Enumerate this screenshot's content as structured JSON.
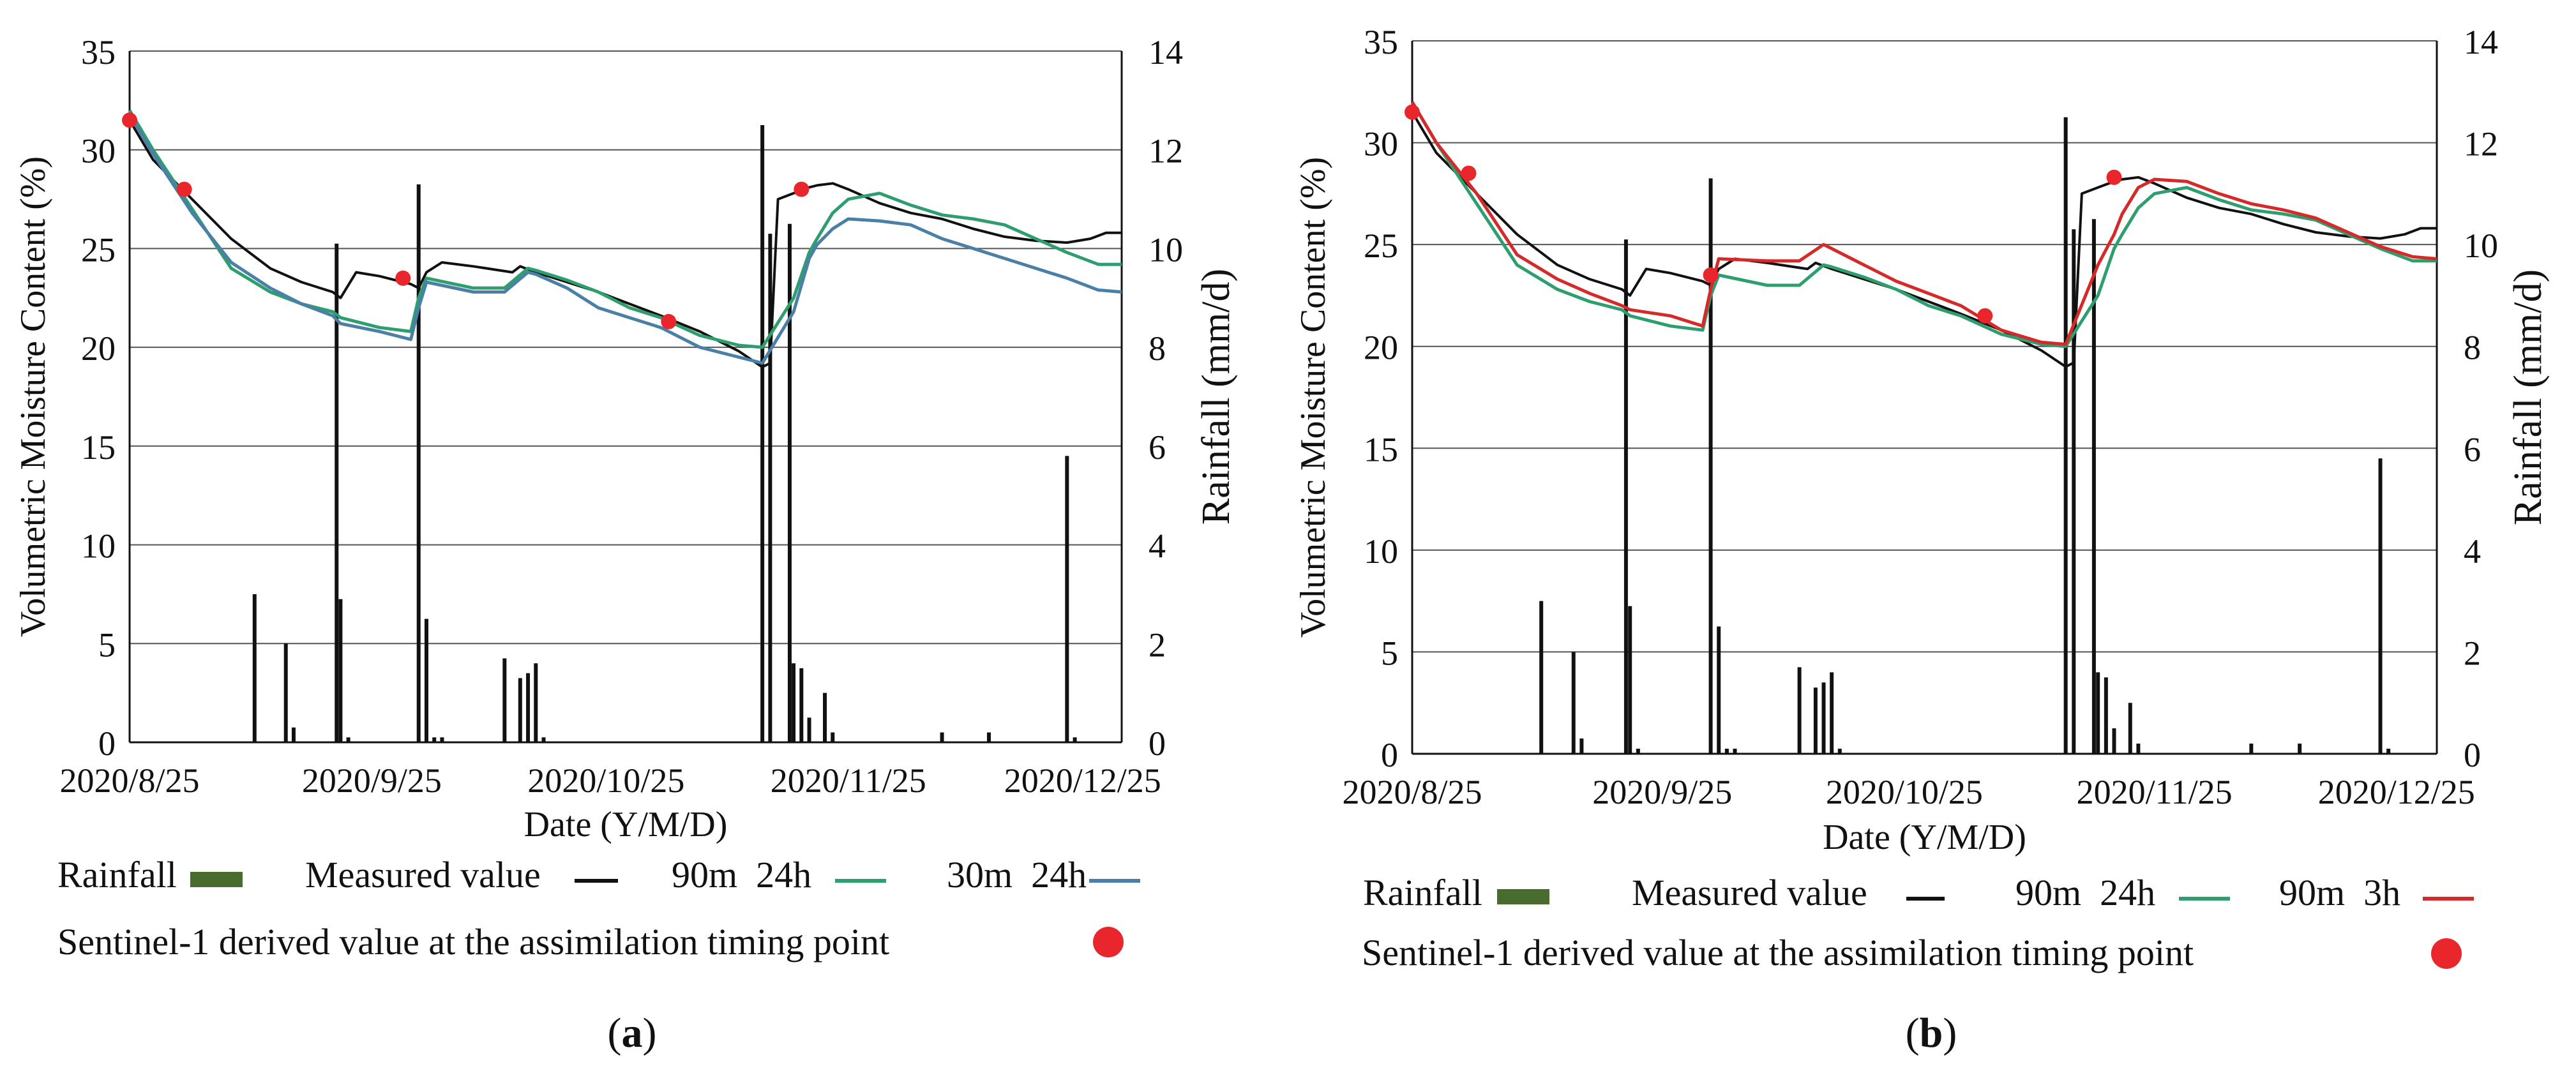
{
  "figure": {
    "panels": [
      {
        "panel_label": "a",
        "legend": {
          "rainfall": "Rainfall",
          "measured": "Measured value",
          "series_a": "90m  24h",
          "series_b": "30m  24h",
          "sentinel": "Sentinel-1 derived value at the assimilation timing point"
        }
      },
      {
        "panel_label": "b",
        "legend": {
          "rainfall": "Rainfall",
          "measured": "Measured value",
          "series_a": "90m  24h",
          "series_b": "90m  3h",
          "sentinel": "Sentinel-1 derived value at the assimilation timing point"
        }
      }
    ]
  },
  "colors": {
    "measured": "#111111",
    "green": "#2e9e6e",
    "blue": "#4a7fa8",
    "red": "#d62a2a",
    "rainfall_legend": "#4a6b2e",
    "bars": "#111111",
    "grid": "#555555",
    "dot": "#e8262b"
  },
  "chart_data": [
    {
      "type": "line",
      "title": "",
      "panel": "a",
      "xlabel": "Date (Y/M/D)",
      "ylabel": "Volumetric Moisture Content (%)",
      "y2label": "Rainfall (mm/d)",
      "x_ticks": [
        "2020/8/25",
        "2020/9/25",
        "2020/10/25",
        "2020/11/25",
        "2020/12/25"
      ],
      "x_tick_days": [
        0,
        31,
        61,
        92,
        122
      ],
      "xlim": [
        0,
        127
      ],
      "ylim": [
        0,
        35
      ],
      "y_ticks": [
        0,
        5,
        10,
        15,
        20,
        25,
        30,
        35
      ],
      "y2lim": [
        0,
        14
      ],
      "y2_ticks": [
        0,
        2,
        4,
        6,
        8,
        10,
        12,
        14
      ],
      "series": [
        {
          "name": "Measured value",
          "color": "measured",
          "x": [
            0,
            3,
            8,
            13,
            18,
            22,
            26,
            27,
            29,
            32,
            36,
            37,
            38,
            40,
            44,
            49,
            50,
            52,
            56,
            60,
            64,
            68,
            73,
            78,
            81,
            82,
            83,
            85,
            87,
            88,
            90,
            92,
            96,
            100,
            104,
            108,
            112,
            116,
            120,
            123,
            125,
            127
          ],
          "y": [
            31.5,
            29.5,
            27.5,
            25.5,
            24.0,
            23.3,
            22.8,
            22.5,
            23.8,
            23.6,
            23.2,
            23.0,
            23.8,
            24.3,
            24.1,
            23.8,
            24.1,
            23.8,
            23.3,
            22.8,
            22.2,
            21.6,
            20.8,
            19.8,
            19.0,
            19.2,
            27.5,
            27.8,
            28.1,
            28.2,
            28.3,
            28.0,
            27.3,
            26.8,
            26.5,
            26.0,
            25.6,
            25.4,
            25.3,
            25.5,
            25.8,
            25.8
          ]
        },
        {
          "name": "90m  24h",
          "color": "green",
          "x": [
            0,
            3,
            8,
            13,
            18,
            22,
            26,
            27,
            32,
            36,
            37,
            38,
            44,
            48,
            51,
            52,
            56,
            60,
            64,
            68,
            73,
            78,
            81,
            85,
            87,
            88,
            90,
            92,
            96,
            100,
            104,
            108,
            112,
            116,
            120,
            124,
            127
          ],
          "y": [
            32.0,
            30.0,
            27.0,
            24.0,
            22.8,
            22.2,
            21.8,
            21.5,
            21.0,
            20.8,
            22.5,
            23.5,
            23.0,
            23.0,
            24.0,
            23.9,
            23.4,
            22.8,
            22.0,
            21.5,
            20.6,
            20.1,
            20.0,
            22.5,
            24.8,
            25.5,
            26.8,
            27.5,
            27.8,
            27.2,
            26.7,
            26.5,
            26.2,
            25.5,
            24.8,
            24.2,
            24.2
          ]
        },
        {
          "name": "30m  24h",
          "color": "blue",
          "x": [
            0,
            3,
            8,
            13,
            18,
            22,
            26,
            27,
            32,
            36,
            37,
            38,
            44,
            48,
            51,
            52,
            56,
            60,
            64,
            68,
            73,
            78,
            81,
            85,
            87,
            88,
            90,
            92,
            96,
            100,
            104,
            108,
            112,
            116,
            120,
            124,
            127
          ],
          "y": [
            31.8,
            29.8,
            26.8,
            24.3,
            23.0,
            22.2,
            21.6,
            21.2,
            20.8,
            20.4,
            22.0,
            23.3,
            22.8,
            22.8,
            23.8,
            23.7,
            23.0,
            22.0,
            21.5,
            21.0,
            20.0,
            19.5,
            19.2,
            21.8,
            24.5,
            25.2,
            26.0,
            26.5,
            26.4,
            26.2,
            25.5,
            25.0,
            24.5,
            24.0,
            23.5,
            22.9,
            22.8
          ]
        }
      ],
      "points": {
        "name": "Sentinel-1 derived value at the assimilation timing point",
        "color": "dot",
        "x": [
          0,
          7,
          35,
          69,
          86
        ],
        "y": [
          31.5,
          28.0,
          23.5,
          21.3,
          28.0
        ]
      },
      "bars": {
        "name": "Rainfall",
        "axis": "y2",
        "x": [
          16,
          20,
          21,
          26.5,
          27,
          28,
          37,
          38,
          39,
          40,
          48,
          50,
          51,
          52,
          53,
          81,
          82,
          84.5,
          85,
          86,
          87,
          89,
          90,
          104,
          110,
          120,
          121
        ],
        "values": [
          3.0,
          2.0,
          0.3,
          10.1,
          2.9,
          0.1,
          11.3,
          2.5,
          0.1,
          0.1,
          1.7,
          1.3,
          1.4,
          1.6,
          0.1,
          12.5,
          10.3,
          10.5,
          1.6,
          1.5,
          0.5,
          1.0,
          0.2,
          0.2,
          0.2,
          5.8,
          0.1
        ]
      }
    },
    {
      "type": "line",
      "title": "",
      "panel": "b",
      "xlabel": "Date (Y/M/D)",
      "ylabel": "Volumetric Moisture Content (%)",
      "y2label": "Rainfall (mm/d)",
      "x_ticks": [
        "2020/8/25",
        "2020/9/25",
        "2020/10/25",
        "2020/11/25",
        "2020/12/25"
      ],
      "x_tick_days": [
        0,
        31,
        61,
        92,
        122
      ],
      "xlim": [
        0,
        127
      ],
      "ylim": [
        0,
        35
      ],
      "y_ticks": [
        0,
        5,
        10,
        15,
        20,
        25,
        30,
        35
      ],
      "y2lim": [
        0,
        14
      ],
      "y2_ticks": [
        0,
        2,
        4,
        6,
        8,
        10,
        12,
        14
      ],
      "series": [
        {
          "name": "Measured value",
          "color": "measured",
          "x": [
            0,
            3,
            8,
            13,
            18,
            22,
            26,
            27,
            29,
            32,
            36,
            37,
            38,
            40,
            44,
            49,
            50,
            52,
            56,
            60,
            64,
            68,
            73,
            78,
            81,
            82,
            83,
            85,
            87,
            88,
            90,
            92,
            96,
            100,
            104,
            108,
            112,
            116,
            120,
            123,
            125,
            127
          ],
          "y": [
            31.5,
            29.5,
            27.5,
            25.5,
            24.0,
            23.3,
            22.8,
            22.5,
            23.8,
            23.6,
            23.2,
            23.0,
            23.8,
            24.3,
            24.1,
            23.8,
            24.1,
            23.8,
            23.3,
            22.8,
            22.2,
            21.6,
            20.8,
            19.8,
            19.0,
            19.2,
            27.5,
            27.8,
            28.1,
            28.2,
            28.3,
            28.0,
            27.3,
            26.8,
            26.5,
            26.0,
            25.6,
            25.4,
            25.3,
            25.5,
            25.8,
            25.8
          ]
        },
        {
          "name": "90m  24h",
          "color": "green",
          "x": [
            0,
            3,
            8,
            13,
            18,
            22,
            26,
            27,
            32,
            36,
            37,
            38,
            44,
            48,
            51,
            52,
            56,
            60,
            64,
            68,
            73,
            78,
            81,
            85,
            87,
            88,
            90,
            92,
            96,
            100,
            104,
            108,
            112,
            116,
            120,
            124,
            127
          ],
          "y": [
            32.0,
            30.0,
            27.0,
            24.0,
            22.8,
            22.2,
            21.8,
            21.5,
            21.0,
            20.8,
            22.5,
            23.5,
            23.0,
            23.0,
            24.0,
            23.9,
            23.4,
            22.8,
            22.0,
            21.5,
            20.6,
            20.1,
            20.0,
            22.5,
            24.8,
            25.5,
            26.8,
            27.5,
            27.8,
            27.2,
            26.7,
            26.5,
            26.2,
            25.5,
            24.8,
            24.2,
            24.2
          ]
        },
        {
          "name": "90m  3h",
          "color": "red",
          "x": [
            0,
            3,
            8,
            13,
            18,
            22,
            26,
            27,
            32,
            36,
            37,
            38,
            44,
            48,
            51,
            52,
            56,
            60,
            64,
            68,
            73,
            78,
            81,
            85,
            87,
            88,
            90,
            92,
            96,
            100,
            104,
            108,
            112,
            116,
            120,
            124,
            127
          ],
          "y": [
            32.0,
            30.0,
            27.5,
            24.5,
            23.3,
            22.6,
            22.0,
            21.8,
            21.5,
            21.0,
            22.8,
            24.3,
            24.2,
            24.2,
            25.0,
            24.8,
            24.0,
            23.2,
            22.6,
            22.0,
            20.8,
            20.2,
            20.1,
            24.0,
            25.5,
            26.5,
            27.8,
            28.2,
            28.1,
            27.5,
            27.0,
            26.7,
            26.3,
            25.6,
            24.9,
            24.4,
            24.3
          ]
        }
      ],
      "points": {
        "name": "Sentinel-1 derived value at the assimilation timing point",
        "color": "dot",
        "x": [
          0,
          7,
          37,
          71,
          87
        ],
        "y": [
          31.5,
          28.5,
          23.5,
          21.5,
          28.3
        ]
      },
      "bars": {
        "name": "Rainfall",
        "axis": "y2",
        "x": [
          16,
          20,
          21,
          26.5,
          27,
          28,
          37,
          38,
          39,
          40,
          48,
          50,
          51,
          52,
          53,
          81,
          82,
          84.5,
          85,
          86,
          87,
          89,
          90,
          104,
          110,
          120,
          121
        ],
        "values": [
          3.0,
          2.0,
          0.3,
          10.1,
          2.9,
          0.1,
          11.3,
          2.5,
          0.1,
          0.1,
          1.7,
          1.3,
          1.4,
          1.6,
          0.1,
          12.5,
          10.3,
          10.5,
          1.6,
          1.5,
          0.5,
          1.0,
          0.2,
          0.2,
          0.2,
          5.8,
          0.1
        ]
      }
    }
  ]
}
